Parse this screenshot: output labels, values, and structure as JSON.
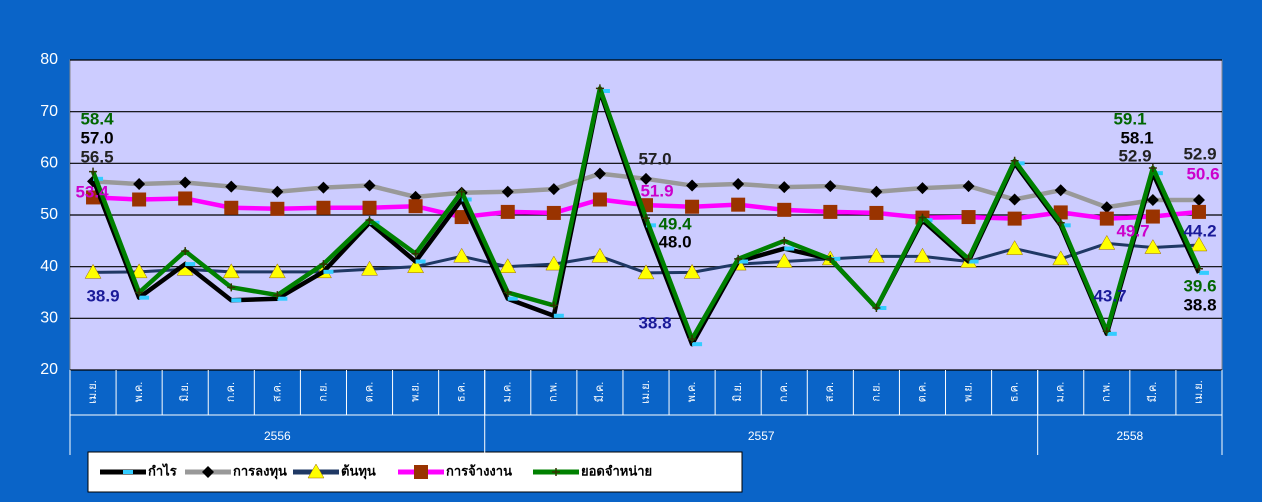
{
  "chart_data": {
    "type": "line",
    "categories": [
      "เม.ย.",
      "พ.ค.",
      "มิ.ย.",
      "ก.ค.",
      "ส.ค.",
      "ก.ย.",
      "ต.ค.",
      "พ.ย.",
      "ธ.ค.",
      "ม.ค.",
      "ก.พ.",
      "มี.ค.",
      "เม.ย.",
      "พ.ค.",
      "มิ.ย.",
      "ก.ค.",
      "ส.ค.",
      "ก.ย.",
      "ต.ค.",
      "พ.ย.",
      "ธ.ค.",
      "ม.ค.",
      "ก.พ.",
      "มี.ค.",
      "เม.ย."
    ],
    "category_groups": [
      {
        "label": "2556",
        "span": 9
      },
      {
        "label": "2557",
        "span": 12
      },
      {
        "label": "2558",
        "span": 4
      }
    ],
    "ylim": [
      20,
      80
    ],
    "yticks": [
      20,
      30,
      40,
      50,
      60,
      70,
      80
    ],
    "grid": true,
    "series": [
      {
        "name": "กำไร",
        "color": "#000000",
        "marker": "dash",
        "marker_color": "#33ccff",
        "label_color": "#000000",
        "values": [
          57.0,
          34,
          40.5,
          33.5,
          33.8,
          39,
          48.5,
          41,
          53,
          33.8,
          30.5,
          74,
          48.0,
          25,
          41,
          43.5,
          41.5,
          32,
          49,
          41,
          60,
          48,
          27,
          58.1,
          38.8
        ],
        "value_labels": [
          "57.0",
          null,
          null,
          null,
          null,
          null,
          null,
          null,
          null,
          null,
          null,
          null,
          "48.0",
          null,
          null,
          null,
          null,
          null,
          null,
          null,
          null,
          null,
          null,
          "58.1",
          "38.8"
        ]
      },
      {
        "name": "การลงทุน",
        "color": "#999999",
        "marker": "diamond",
        "marker_color": "#000000",
        "label_color": "#222222",
        "values": [
          56.5,
          56,
          56.3,
          55.5,
          54.5,
          55.3,
          55.7,
          53.5,
          54.3,
          54.5,
          55,
          58,
          57.0,
          55.7,
          56,
          55.4,
          55.6,
          54.5,
          55.2,
          55.6,
          53,
          54.8,
          51.5,
          52.9,
          52.9
        ],
        "value_labels": [
          "56.5",
          null,
          null,
          null,
          null,
          null,
          null,
          null,
          null,
          null,
          null,
          null,
          "57.0",
          null,
          null,
          null,
          null,
          null,
          null,
          null,
          null,
          null,
          null,
          "52.9",
          "52.9"
        ]
      },
      {
        "name": "ต้นทุน",
        "color": "#1f3864",
        "marker": "triangle",
        "marker_color": "#ffff00",
        "label_color": "#1a1a99",
        "values": [
          38.9,
          39,
          39.5,
          39,
          39,
          39,
          39.5,
          40,
          42,
          40,
          40.5,
          42,
          38.8,
          38.9,
          40.5,
          41,
          41.5,
          42,
          42,
          41,
          43.5,
          41.5,
          44.5,
          43.7,
          44.2
        ],
        "value_labels": [
          "38.9",
          null,
          null,
          null,
          null,
          null,
          null,
          null,
          null,
          null,
          null,
          null,
          "38.8",
          null,
          null,
          null,
          null,
          null,
          null,
          null,
          null,
          null,
          null,
          "43.7",
          "44.2"
        ]
      },
      {
        "name": "การจ้างงาน",
        "color": "#ff00ff",
        "marker": "square",
        "marker_color": "#993300",
        "label_color": "#cc00cc",
        "values": [
          53.4,
          53,
          53.2,
          51.4,
          51.2,
          51.4,
          51.4,
          51.7,
          49.6,
          50.6,
          50.4,
          53,
          51.9,
          51.6,
          52,
          51,
          50.6,
          50.4,
          49.5,
          49.6,
          49.3,
          50.5,
          49.3,
          49.7,
          50.6
        ],
        "value_labels": [
          "53.4",
          null,
          null,
          null,
          null,
          null,
          null,
          null,
          null,
          null,
          null,
          null,
          "51.9",
          null,
          null,
          null,
          null,
          null,
          null,
          null,
          null,
          null,
          null,
          "49.7",
          "50.6"
        ]
      },
      {
        "name": "ยอดจำหน่าย",
        "color": "#008000",
        "marker": "plus",
        "marker_color": "#333300",
        "label_color": "#006600",
        "values": [
          58.4,
          35,
          43,
          36,
          34.5,
          40.5,
          49,
          42.5,
          54.5,
          35,
          32.5,
          74.5,
          49.4,
          26,
          41.5,
          45,
          41.5,
          32,
          49.5,
          41.5,
          60.5,
          48.5,
          27.5,
          59.1,
          39.6
        ],
        "value_labels": [
          "58.4",
          null,
          null,
          null,
          null,
          null,
          null,
          null,
          null,
          null,
          null,
          null,
          "49.4",
          null,
          null,
          null,
          null,
          null,
          null,
          null,
          null,
          null,
          null,
          "59.1",
          "39.6"
        ]
      }
    ]
  }
}
